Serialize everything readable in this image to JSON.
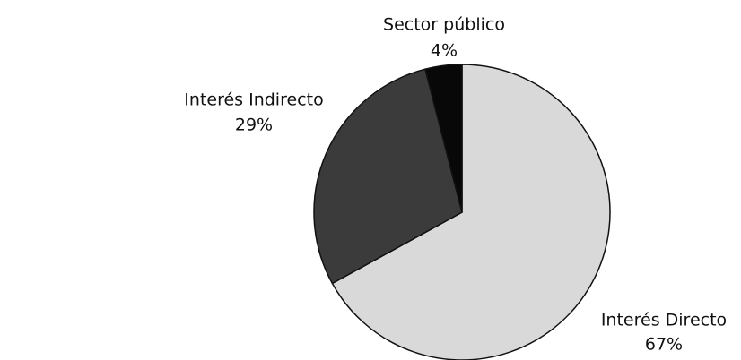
{
  "chart_data": {
    "type": "pie",
    "categories": [
      "Interés Directo",
      "Interés Indirecto",
      "Sector público"
    ],
    "values": [
      67,
      29,
      4
    ],
    "value_labels": [
      "67%",
      "29%",
      "4%"
    ],
    "colors": [
      "#d9d9d9",
      "#3b3b3b",
      "#080808"
    ]
  }
}
